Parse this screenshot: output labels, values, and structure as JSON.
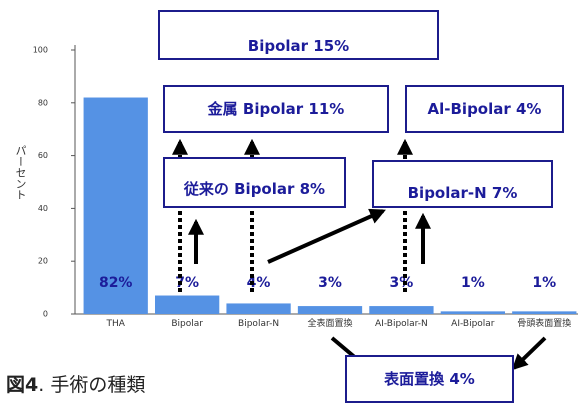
{
  "chart_data": {
    "type": "bar",
    "categories": [
      "THA",
      "Bipolar",
      "Bipolar-N",
      "全表面置換",
      "AI-Bipolar-N",
      "AI-Bipolar",
      "骨頭表面置換"
    ],
    "values": [
      82,
      7,
      4,
      3,
      3,
      1,
      1
    ],
    "value_labels": [
      "82%",
      "7%",
      "4%",
      "3%",
      "3%",
      "1%",
      "1%"
    ],
    "color": "#5592e4",
    "y_label": "パーセント",
    "ylim": [
      0,
      100
    ],
    "yticks": [
      0,
      20,
      40,
      60,
      80,
      100
    ],
    "grid": false,
    "annotations": [
      "Bipolar 15%",
      "金属 Bipolar 11%",
      "Al-Bipolar 4%",
      "従来の Bipolar 8%",
      "Bipolar-N 7%",
      "表面置換 4%"
    ]
  },
  "caption": {
    "figure": "図4",
    "text": ". 手術の種類"
  }
}
